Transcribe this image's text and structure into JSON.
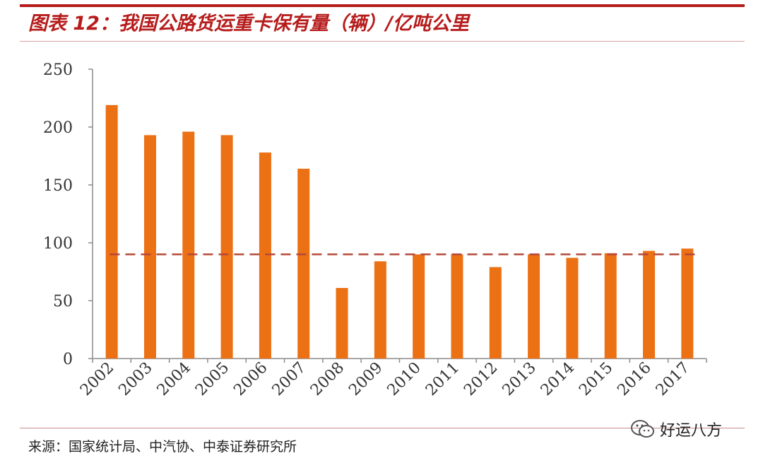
{
  "header": {
    "title": "图表 12：我国公路货运重卡保有量（辆）/亿吨公里"
  },
  "footer": {
    "source": "来源：国家统计局、中汽协、中泰证券研究所",
    "watermark": "好运八方",
    "watermark_icon": "wechat-icon"
  },
  "colors": {
    "accent": "#b71c1c",
    "bar": "#ec7014",
    "reference_line": "#b5473a"
  },
  "chart_data": {
    "type": "bar",
    "title": "",
    "xlabel": "",
    "ylabel": "",
    "categories": [
      "2002",
      "2003",
      "2004",
      "2005",
      "2006",
      "2007",
      "2008",
      "2009",
      "2010",
      "2011",
      "2012",
      "2013",
      "2014",
      "2015",
      "2016",
      "2017"
    ],
    "values": [
      219,
      193,
      196,
      193,
      178,
      164,
      61,
      84,
      90,
      90,
      79,
      90,
      87,
      91,
      93,
      95
    ],
    "ylim": [
      0,
      250
    ],
    "yticks": [
      0,
      50,
      100,
      150,
      200,
      250
    ],
    "reference_line": {
      "y": 90,
      "style": "dashed"
    },
    "grid": false,
    "legend": "none",
    "x_tick_rotation": "diagonal"
  }
}
